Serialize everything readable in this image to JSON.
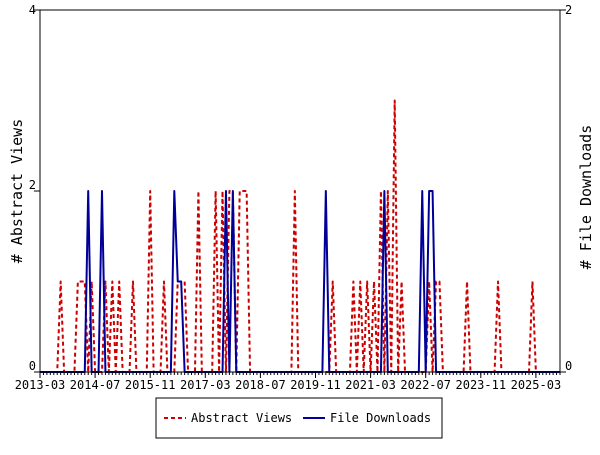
{
  "chart_data": {
    "type": "line",
    "title": "",
    "x_ticks": [
      "2013-03",
      "2014-07",
      "2015-11",
      "2017-03",
      "2018-07",
      "2019-11",
      "2021-03",
      "2022-07",
      "2023-11",
      "2025-03"
    ],
    "x_range": [
      "2013-03",
      "2025-10"
    ],
    "y_left": {
      "label": "# Abstract Views",
      "range": [
        0,
        4
      ],
      "ticks": [
        "0",
        "2",
        "4"
      ]
    },
    "y_right": {
      "label": "# File Downloads",
      "range": [
        0,
        2
      ],
      "ticks": [
        "0",
        "2"
      ]
    },
    "grid": false,
    "legend": {
      "placement": "bottom-center"
    },
    "colors": {
      "abstract_views": "#cc0000",
      "file_downloads": "#000099"
    },
    "series": [
      {
        "name": "Abstract Views",
        "axis": "left",
        "style": "dashed",
        "points": [
          [
            "2013-03",
            0
          ],
          [
            "2013-08",
            0
          ],
          [
            "2013-09",
            1
          ],
          [
            "2013-10",
            0
          ],
          [
            "2014-01",
            0
          ],
          [
            "2014-02",
            1
          ],
          [
            "2014-04",
            1
          ],
          [
            "2014-05",
            0
          ],
          [
            "2014-06",
            1
          ],
          [
            "2014-07",
            0
          ],
          [
            "2014-09",
            0
          ],
          [
            "2014-10",
            1
          ],
          [
            "2014-11",
            0
          ],
          [
            "2014-12",
            1
          ],
          [
            "2015-01",
            0
          ],
          [
            "2015-02",
            1
          ],
          [
            "2015-03",
            0
          ],
          [
            "2015-05",
            0
          ],
          [
            "2015-06",
            1
          ],
          [
            "2015-07",
            0
          ],
          [
            "2015-10",
            0
          ],
          [
            "2015-11",
            2
          ],
          [
            "2015-12",
            0
          ],
          [
            "2016-02",
            0
          ],
          [
            "2016-03",
            1
          ],
          [
            "2016-04",
            0
          ],
          [
            "2016-06",
            0
          ],
          [
            "2016-07",
            1
          ],
          [
            "2016-09",
            1
          ],
          [
            "2016-10",
            0
          ],
          [
            "2016-12",
            0
          ],
          [
            "2017-01",
            2
          ],
          [
            "2017-02",
            0
          ],
          [
            "2017-05",
            0
          ],
          [
            "2017-06",
            2
          ],
          [
            "2017-07",
            0
          ],
          [
            "2017-08",
            2
          ],
          [
            "2017-09",
            0
          ],
          [
            "2017-10",
            2
          ],
          [
            "2017-11",
            2
          ],
          [
            "2017-12",
            0
          ],
          [
            "2018-01",
            2
          ],
          [
            "2018-03",
            2
          ],
          [
            "2018-04",
            0
          ],
          [
            "2019-04",
            0
          ],
          [
            "2019-05",
            2
          ],
          [
            "2019-06",
            0
          ],
          [
            "2020-03",
            0
          ],
          [
            "2020-04",
            1
          ],
          [
            "2020-05",
            0
          ],
          [
            "2020-09",
            0
          ],
          [
            "2020-10",
            1
          ],
          [
            "2020-11",
            0
          ],
          [
            "2020-12",
            1
          ],
          [
            "2021-01",
            0
          ],
          [
            "2021-02",
            1
          ],
          [
            "2021-03",
            0
          ],
          [
            "2021-04",
            1
          ],
          [
            "2021-05",
            0
          ],
          [
            "2021-06",
            2
          ],
          [
            "2021-07",
            0
          ],
          [
            "2021-08",
            2
          ],
          [
            "2021-09",
            0
          ],
          [
            "2021-10",
            3
          ],
          [
            "2021-11",
            0
          ],
          [
            "2021-12",
            1
          ],
          [
            "2022-01",
            0
          ],
          [
            "2022-07",
            0
          ],
          [
            "2022-08",
            1
          ],
          [
            "2022-09",
            0
          ],
          [
            "2022-10",
            1
          ],
          [
            "2022-11",
            1
          ],
          [
            "2022-12",
            0
          ],
          [
            "2023-06",
            0
          ],
          [
            "2023-07",
            1
          ],
          [
            "2023-08",
            0
          ],
          [
            "2024-03",
            0
          ],
          [
            "2024-04",
            1
          ],
          [
            "2024-05",
            0
          ],
          [
            "2025-01",
            0
          ],
          [
            "2025-02",
            1
          ],
          [
            "2025-03",
            0
          ],
          [
            "2025-10",
            0
          ]
        ]
      },
      {
        "name": "File Downloads",
        "axis": "right",
        "style": "solid",
        "points": [
          [
            "2013-03",
            0
          ],
          [
            "2014-04",
            0
          ],
          [
            "2014-05",
            1
          ],
          [
            "2014-06",
            0
          ],
          [
            "2014-08",
            0
          ],
          [
            "2014-09",
            1
          ],
          [
            "2014-10",
            0
          ],
          [
            "2016-05",
            0
          ],
          [
            "2016-06",
            1
          ],
          [
            "2016-07",
            0.5
          ],
          [
            "2016-08",
            0.5
          ],
          [
            "2016-09",
            0
          ],
          [
            "2017-08",
            0
          ],
          [
            "2017-09",
            1
          ],
          [
            "2017-10",
            0
          ],
          [
            "2017-11",
            1
          ],
          [
            "2017-12",
            0
          ],
          [
            "2020-01",
            0
          ],
          [
            "2020-02",
            1
          ],
          [
            "2020-03",
            0
          ],
          [
            "2021-06",
            0
          ],
          [
            "2021-07",
            1
          ],
          [
            "2021-08",
            0
          ],
          [
            "2022-05",
            0
          ],
          [
            "2022-06",
            1
          ],
          [
            "2022-07",
            0
          ],
          [
            "2022-08",
            1
          ],
          [
            "2022-09",
            1
          ],
          [
            "2022-10",
            0
          ],
          [
            "2025-10",
            0
          ]
        ]
      }
    ]
  }
}
